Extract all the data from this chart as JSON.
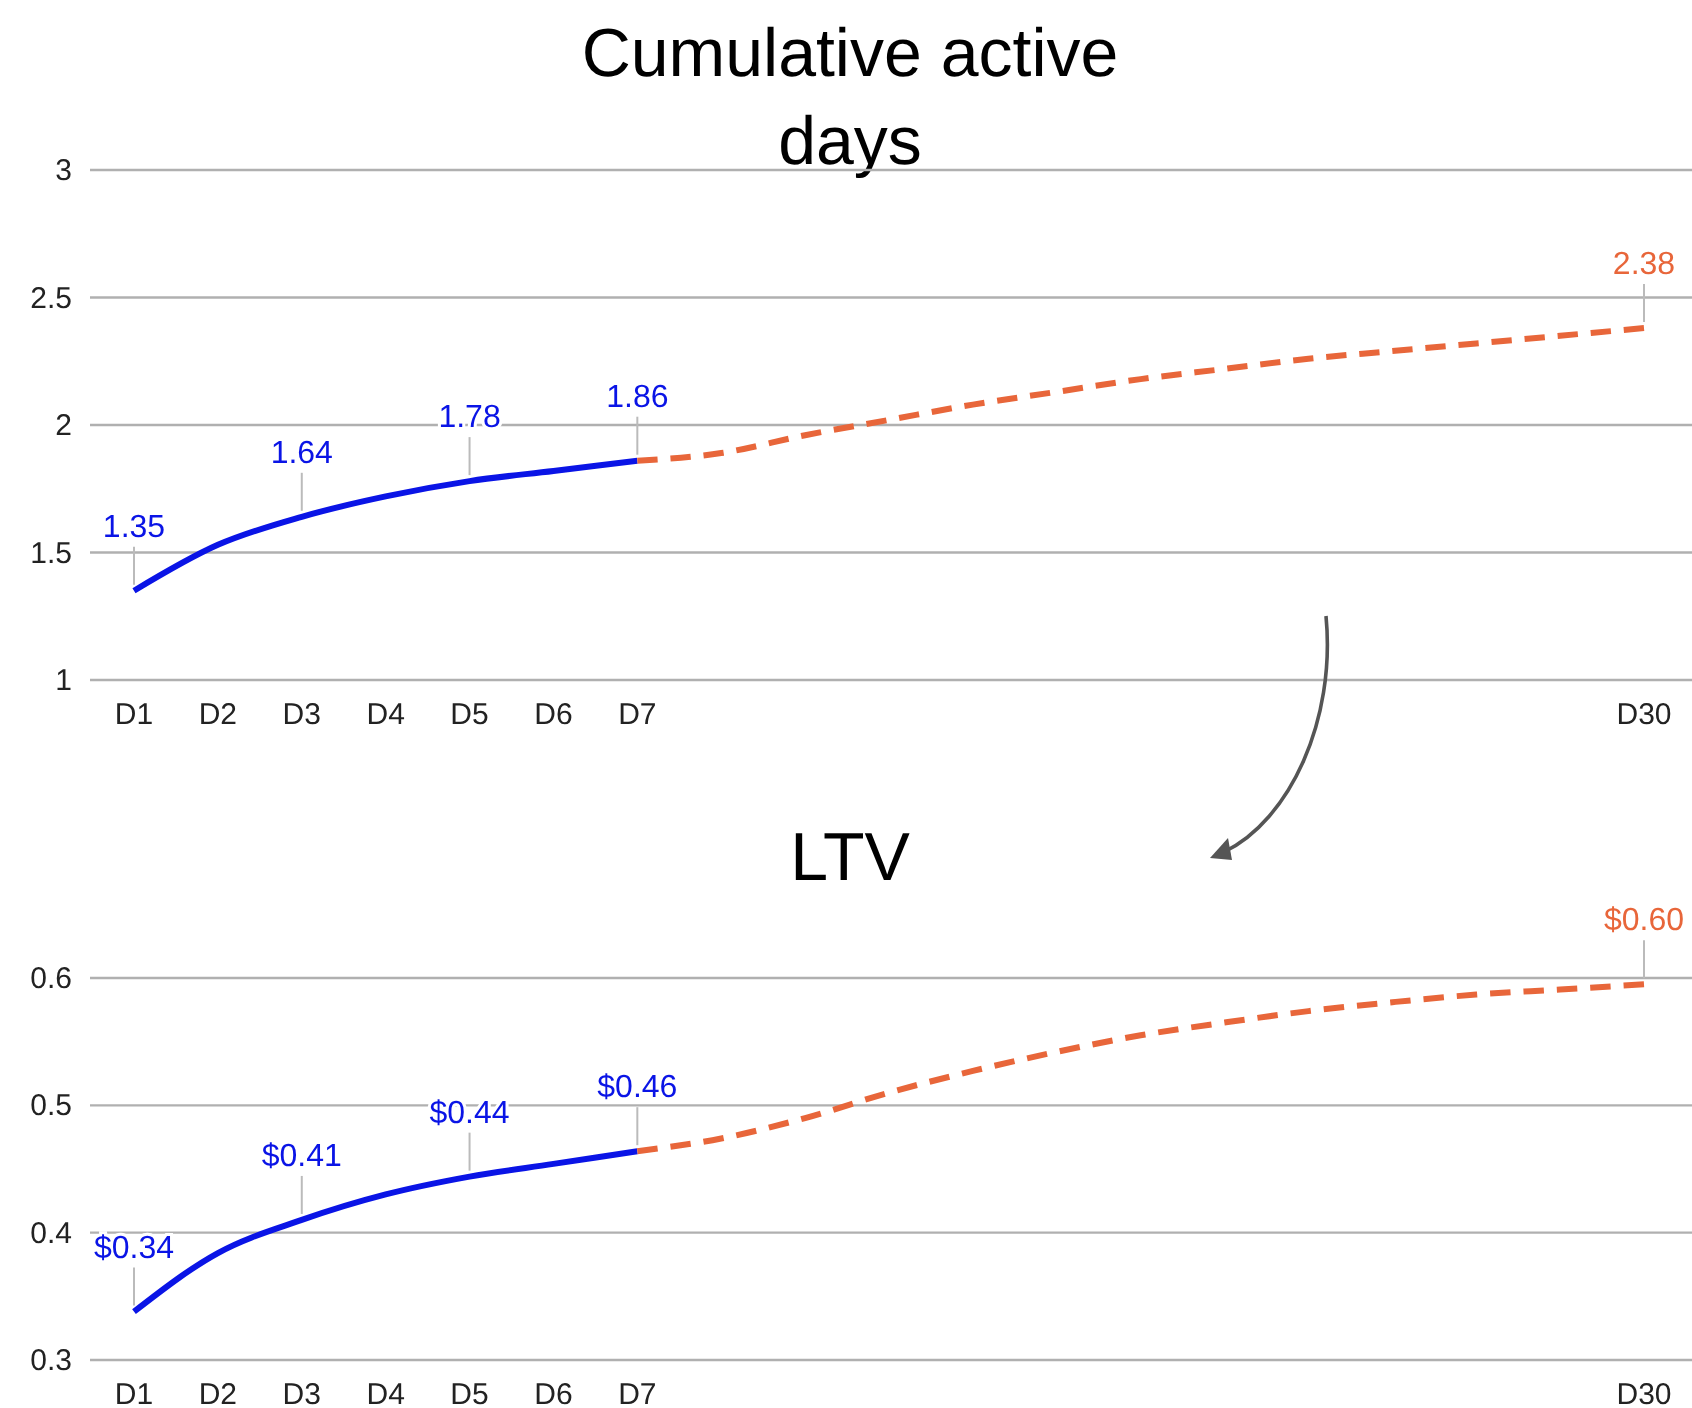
{
  "chart_data": [
    {
      "type": "line",
      "title": "Cumulative active days",
      "categories": [
        "D1",
        "D2",
        "D3",
        "D4",
        "D5",
        "D6",
        "D7",
        null,
        null,
        null,
        null,
        null,
        null,
        null,
        null,
        null,
        null,
        null,
        "D30"
      ],
      "series": [
        {
          "color": "#0a14e6",
          "line_style": "solid",
          "values": [
            1.35,
            1.53,
            1.64,
            1.72,
            1.78,
            1.82,
            1.86,
            null,
            null,
            null,
            null,
            null,
            null,
            null,
            null,
            null,
            null,
            null,
            null
          ],
          "value_labels": [
            "1.35",
            null,
            "1.64",
            null,
            "1.78",
            null,
            "1.86",
            null,
            null,
            null,
            null,
            null,
            null,
            null,
            null,
            null,
            null,
            null,
            null
          ]
        },
        {
          "color": "#e8663a",
          "line_style": "dashed",
          "values": [
            null,
            null,
            null,
            null,
            null,
            null,
            1.86,
            1.89,
            1.96,
            2.02,
            2.08,
            2.13,
            2.18,
            2.22,
            2.26,
            2.29,
            2.32,
            2.35,
            2.38
          ],
          "value_labels": [
            null,
            null,
            null,
            null,
            null,
            null,
            null,
            null,
            null,
            null,
            null,
            null,
            null,
            null,
            null,
            null,
            null,
            null,
            "2.38"
          ]
        }
      ],
      "ylim": [
        1,
        3
      ],
      "yticks": [
        1,
        1.5,
        2,
        2.5,
        3
      ],
      "grid": "y",
      "marker": "none"
    },
    {
      "type": "line",
      "title": "LTV",
      "categories": [
        "D1",
        "D2",
        "D3",
        "D4",
        "D5",
        "D6",
        "D7",
        null,
        null,
        null,
        null,
        null,
        null,
        null,
        null,
        null,
        null,
        null,
        "D30"
      ],
      "series": [
        {
          "color": "#0a14e6",
          "line_style": "solid",
          "values": [
            0.338,
            0.384,
            0.41,
            0.43,
            0.444,
            0.454,
            0.464,
            null,
            null,
            null,
            null,
            null,
            null,
            null,
            null,
            null,
            null,
            null,
            null
          ],
          "value_labels": [
            "$0.34",
            null,
            "$0.41",
            null,
            "$0.44",
            null,
            "$0.46",
            null,
            null,
            null,
            null,
            null,
            null,
            null,
            null,
            null,
            null,
            null,
            null
          ]
        },
        {
          "color": "#e8663a",
          "line_style": "dashed",
          "values": [
            null,
            null,
            null,
            null,
            null,
            null,
            0.464,
            0.474,
            0.49,
            0.51,
            0.527,
            0.542,
            0.555,
            0.565,
            0.574,
            0.581,
            0.587,
            0.591,
            0.595
          ],
          "value_labels": [
            null,
            null,
            null,
            null,
            null,
            null,
            null,
            null,
            null,
            null,
            null,
            null,
            null,
            null,
            null,
            null,
            null,
            null,
            "$0.60"
          ]
        }
      ],
      "ylim": [
        0.3,
        0.6
      ],
      "yticks": [
        0.3,
        0.4,
        0.5,
        0.6
      ],
      "grid": "y",
      "marker": "none"
    }
  ]
}
